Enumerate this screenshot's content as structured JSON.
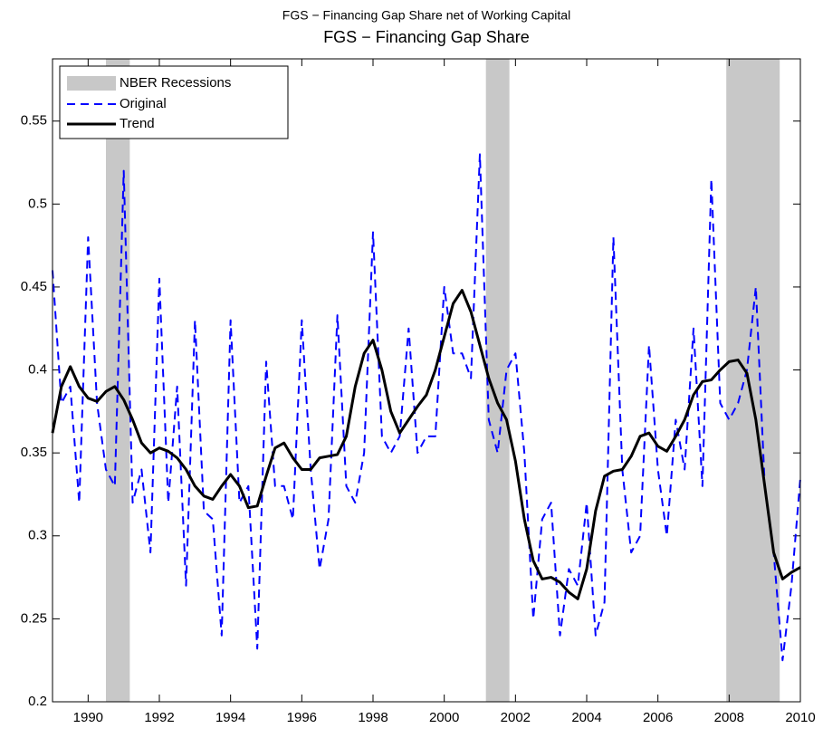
{
  "chart_data": {
    "type": "line",
    "suptitle": "FGS − Financing Gap Share net of Working Capital",
    "title": "FGS − Financing Gap Share",
    "x": [
      1989,
      1989.25,
      1989.5,
      1989.75,
      1990,
      1990.25,
      1990.5,
      1990.75,
      1991,
      1991.25,
      1991.5,
      1991.75,
      1992,
      1992.25,
      1992.5,
      1992.75,
      1993,
      1993.25,
      1993.5,
      1993.75,
      1994,
      1994.25,
      1994.5,
      1994.75,
      1995,
      1995.25,
      1995.5,
      1995.75,
      1996,
      1996.25,
      1996.5,
      1996.75,
      1997,
      1997.25,
      1997.5,
      1997.75,
      1998,
      1998.25,
      1998.5,
      1998.75,
      1999,
      1999.25,
      1999.5,
      1999.75,
      2000,
      2000.25,
      2000.5,
      2000.75,
      2001,
      2001.25,
      2001.5,
      2001.75,
      2002,
      2002.25,
      2002.5,
      2002.75,
      2003,
      2003.25,
      2003.5,
      2003.75,
      2004,
      2004.25,
      2004.5,
      2004.75,
      2005,
      2005.25,
      2005.5,
      2005.75,
      2006,
      2006.25,
      2006.5,
      2006.75,
      2007,
      2007.25,
      2007.5,
      2007.75,
      2008,
      2008.25,
      2008.5,
      2008.75,
      2009,
      2009.25,
      2009.5,
      2009.75,
      2010
    ],
    "series": [
      {
        "name": "Original",
        "color": "#0000ff",
        "dashed": true,
        "values": [
          0.46,
          0.38,
          0.39,
          0.32,
          0.48,
          0.38,
          0.34,
          0.33,
          0.52,
          0.32,
          0.34,
          0.29,
          0.455,
          0.32,
          0.39,
          0.27,
          0.43,
          0.315,
          0.31,
          0.24,
          0.43,
          0.32,
          0.33,
          0.232,
          0.405,
          0.33,
          0.33,
          0.31,
          0.43,
          0.34,
          0.28,
          0.31,
          0.433,
          0.33,
          0.32,
          0.35,
          0.483,
          0.36,
          0.35,
          0.36,
          0.425,
          0.35,
          0.36,
          0.36,
          0.45,
          0.41,
          0.41,
          0.395,
          0.53,
          0.37,
          0.35,
          0.4,
          0.41,
          0.35,
          0.25,
          0.31,
          0.32,
          0.24,
          0.28,
          0.27,
          0.32,
          0.24,
          0.26,
          0.48,
          0.34,
          0.29,
          0.3,
          0.415,
          0.34,
          0.3,
          0.37,
          0.34,
          0.425,
          0.33,
          0.515,
          0.38,
          0.37,
          0.38,
          0.4,
          0.45,
          0.33,
          0.29,
          0.225,
          0.27,
          0.335
        ]
      },
      {
        "name": "Trend",
        "color": "#000000",
        "dashed": false,
        "values": [
          0.362,
          0.39,
          0.402,
          0.39,
          0.383,
          0.381,
          0.387,
          0.39,
          0.382,
          0.37,
          0.356,
          0.35,
          0.353,
          0.351,
          0.347,
          0.34,
          0.33,
          0.324,
          0.322,
          0.33,
          0.337,
          0.33,
          0.317,
          0.318,
          0.336,
          0.353,
          0.356,
          0.347,
          0.34,
          0.34,
          0.347,
          0.348,
          0.349,
          0.36,
          0.39,
          0.41,
          0.418,
          0.4,
          0.375,
          0.362,
          0.37,
          0.378,
          0.385,
          0.4,
          0.42,
          0.44,
          0.448,
          0.435,
          0.415,
          0.395,
          0.38,
          0.37,
          0.345,
          0.31,
          0.285,
          0.274,
          0.275,
          0.272,
          0.266,
          0.262,
          0.28,
          0.315,
          0.336,
          0.339,
          0.34,
          0.348,
          0.36,
          0.362,
          0.354,
          0.351,
          0.36,
          0.37,
          0.385,
          0.393,
          0.394,
          0.4,
          0.405,
          0.406,
          0.398,
          0.37,
          0.33,
          0.29,
          0.274,
          0.278,
          0.281
        ]
      }
    ],
    "recession_label": "NBER Recessions",
    "recession_color": "#c8c8c8",
    "recessions": [
      [
        1990.5,
        1991.17
      ],
      [
        2001.17,
        2001.83
      ],
      [
        2007.92,
        2009.42
      ]
    ],
    "xlim": [
      1989,
      2010
    ],
    "xticks": [
      1990,
      1992,
      1994,
      1996,
      1998,
      2000,
      2002,
      2004,
      2006,
      2008,
      2010
    ],
    "ylim": [
      0.2,
      0.5875
    ],
    "yticks": [
      0.2,
      0.25,
      0.3,
      0.35,
      0.4,
      0.45,
      0.5,
      0.55
    ],
    "legend": "upper-left"
  }
}
